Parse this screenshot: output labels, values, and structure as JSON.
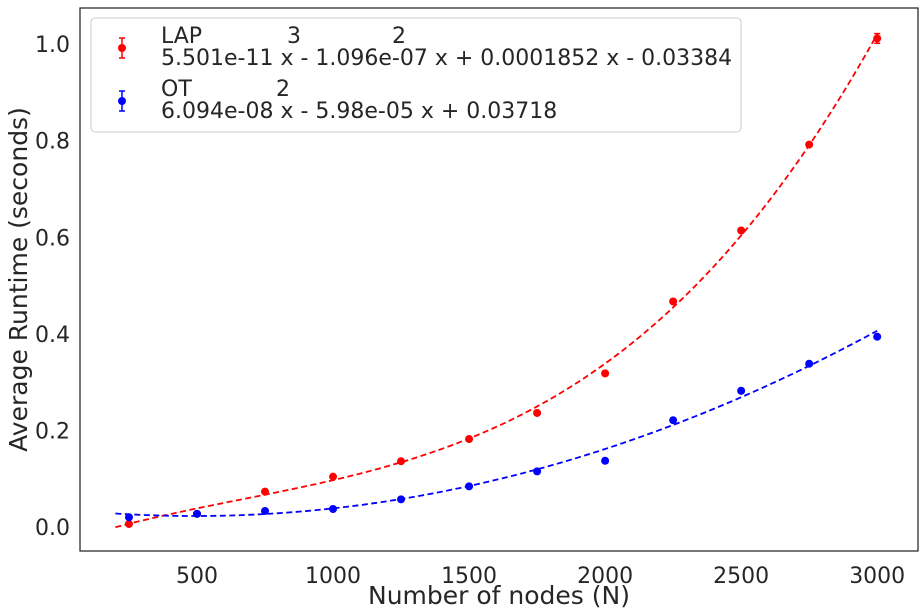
{
  "chart_data": {
    "type": "scatter",
    "xlabel": "Number of nodes (N)",
    "ylabel": "Average Runtime (seconds)",
    "xlim": [
      70,
      3150
    ],
    "ylim": [
      -0.05,
      1.075
    ],
    "x_ticks": [
      500,
      1000,
      1500,
      2000,
      2500,
      3000
    ],
    "y_ticks": [
      0.0,
      0.2,
      0.4,
      0.6,
      0.8,
      1.0
    ],
    "x_tick_labels": [
      "500",
      "1000",
      "1500",
      "2000",
      "2500",
      "3000"
    ],
    "y_tick_labels": [
      "0.0",
      "0.2",
      "0.4",
      "0.6",
      "0.8",
      "1.0"
    ],
    "grid": false,
    "legend_position": "top-left",
    "fit_range": [
      200,
      3000
    ],
    "series": [
      {
        "name": "LAP",
        "color": "#ff0000",
        "legend_line1_parts": [
          "LAP",
          "3",
          "2"
        ],
        "legend_line2": "5.501e-11 x - 1.096e-07 x + 0.0001852 x - 0.03384",
        "fit_coefficients": [
          5.501e-11,
          -1.096e-07,
          0.0001852,
          -0.03384
        ],
        "x": [
          250,
          500,
          750,
          1000,
          1250,
          1500,
          1750,
          2000,
          2250,
          2500,
          2750,
          3000
        ],
        "y": [
          0.006,
          0.027,
          0.073,
          0.104,
          0.136,
          0.182,
          0.236,
          0.318,
          0.467,
          0.614,
          0.792,
          1.012
        ],
        "err": [
          0.001,
          0.001,
          0.002,
          0.002,
          0.002,
          0.002,
          0.003,
          0.003,
          0.003,
          0.004,
          0.004,
          0.01
        ]
      },
      {
        "name": "OT",
        "color": "#0000ff",
        "legend_line1_parts": [
          "OT",
          "2"
        ],
        "legend_line2": "6.094e-08 x - 5.98e-05 x + 0.03718",
        "fit_coefficients": [
          6.094e-08,
          -5.98e-05,
          0.03718
        ],
        "x": [
          250,
          500,
          750,
          1000,
          1250,
          1500,
          1750,
          2000,
          2250,
          2500,
          2750,
          3000
        ],
        "y": [
          0.02,
          0.027,
          0.033,
          0.037,
          0.057,
          0.084,
          0.115,
          0.137,
          0.221,
          0.282,
          0.338,
          0.394
        ],
        "err": [
          0.001,
          0.001,
          0.001,
          0.001,
          0.001,
          0.001,
          0.002,
          0.002,
          0.002,
          0.002,
          0.003,
          0.003
        ]
      }
    ]
  }
}
